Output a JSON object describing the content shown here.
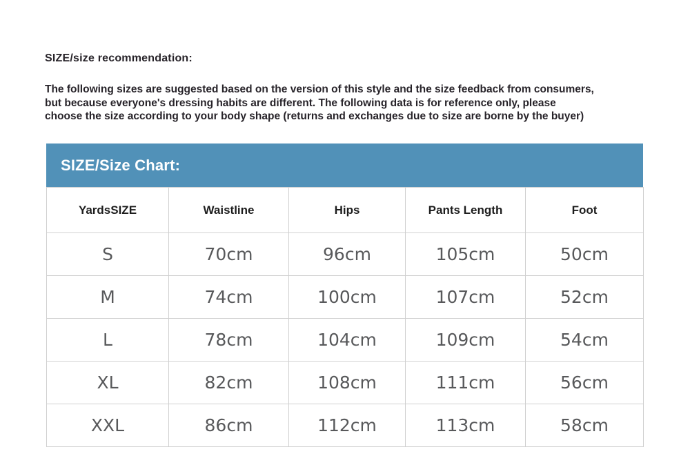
{
  "page": {
    "heading": "SIZE/size recommendation:",
    "description_lines": [
      "The following sizes are suggested based on the version of this style and the size feedback from consumers,",
      "but because everyone's dressing habits are different. The following data is for reference only, please",
      "choose the size according to your body shape (returns and exchanges due to size are borne by the buyer)"
    ]
  },
  "size_chart": {
    "title": "SIZE/Size Chart:",
    "title_bar_color": "#5191b8",
    "columns": [
      "YardsSIZE",
      "Waistline",
      "Hips",
      "Pants Length",
      "Foot"
    ],
    "rows": [
      [
        "S",
        "70cm",
        "96cm",
        "105cm",
        "50cm"
      ],
      [
        "M",
        "74cm",
        "100cm",
        "107cm",
        "52cm"
      ],
      [
        "L",
        "78cm",
        "104cm",
        "109cm",
        "54cm"
      ],
      [
        "XL",
        "82cm",
        "108cm",
        "111cm",
        "56cm"
      ],
      [
        "XXL",
        "86cm",
        "112cm",
        "113cm",
        "58cm"
      ]
    ]
  }
}
